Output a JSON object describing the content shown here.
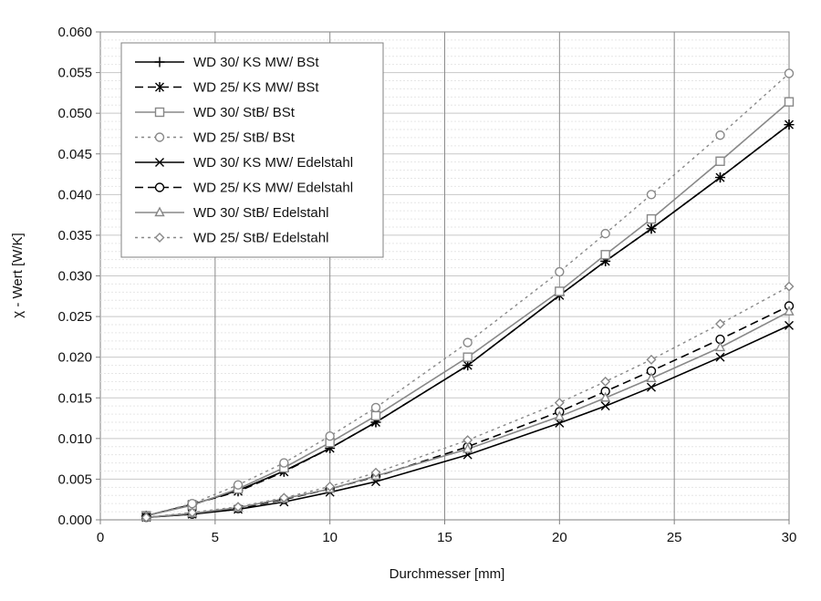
{
  "chart_data": {
    "type": "line",
    "title": "",
    "xlabel": "Durchmesser [mm]",
    "ylabel": "χ - Wert [W/K]",
    "xlim": [
      0,
      30
    ],
    "ylim": [
      0,
      0.06
    ],
    "x_ticks": [
      0,
      5,
      10,
      15,
      20,
      25,
      30
    ],
    "y_ticks": [
      0.0,
      0.005,
      0.01,
      0.015,
      0.02,
      0.025,
      0.03,
      0.035,
      0.04,
      0.045,
      0.05,
      0.055,
      0.06
    ],
    "x_tick_labels": [
      "0",
      "5",
      "10",
      "15",
      "20",
      "25",
      "30"
    ],
    "y_tick_labels": [
      "0.000",
      "0.005",
      "0.010",
      "0.015",
      "0.020",
      "0.025",
      "0.030",
      "0.035",
      "0.040",
      "0.045",
      "0.050",
      "0.055",
      "0.060"
    ],
    "grid": {
      "major_x": true,
      "minor_y": true
    },
    "legend_position": "top-left",
    "x": [
      2,
      4,
      6,
      8,
      10,
      12,
      16,
      20,
      22,
      24,
      27,
      30
    ],
    "series": [
      {
        "name": "WD 30/ KS MW/ BSt",
        "color": "#000000",
        "dash": "solid",
        "marker": "plus",
        "values": [
          0.0005,
          0.0019,
          0.0036,
          0.006,
          0.0088,
          0.012,
          0.019,
          0.0276,
          0.0318,
          0.0358,
          0.0421,
          0.0486
        ]
      },
      {
        "name": "WD 25/ KS MW/ BSt",
        "color": "#000000",
        "dash": "dashed",
        "marker": "asterisk",
        "values": [
          0.0005,
          0.0019,
          0.0035,
          0.0059,
          0.0088,
          0.012,
          0.019,
          0.0276,
          0.0318,
          0.0358,
          0.0421,
          0.0486
        ]
      },
      {
        "name": "WD 30/ StB/ BSt",
        "color": "#888888",
        "dash": "solid",
        "marker": "square",
        "values": [
          0.0005,
          0.0018,
          0.0038,
          0.0064,
          0.0095,
          0.0128,
          0.02,
          0.0281,
          0.0326,
          0.037,
          0.0441,
          0.0514
        ]
      },
      {
        "name": "WD 25/ StB/ BSt",
        "color": "#888888",
        "dash": "dotted",
        "marker": "circle",
        "values": [
          0.0005,
          0.002,
          0.0043,
          0.007,
          0.0103,
          0.0138,
          0.0218,
          0.0305,
          0.0352,
          0.04,
          0.0473,
          0.0549
        ]
      },
      {
        "name": "WD 30/ KS MW/ Edelstahl",
        "color": "#000000",
        "dash": "solid",
        "marker": "x",
        "values": [
          0.0003,
          0.0007,
          0.0013,
          0.0022,
          0.0034,
          0.0047,
          0.008,
          0.0119,
          0.014,
          0.0163,
          0.02,
          0.0239
        ]
      },
      {
        "name": "WD 25/ KS MW/ Edelstahl",
        "color": "#000000",
        "dash": "dashed",
        "marker": "circle",
        "values": [
          0.0003,
          0.0007,
          0.0014,
          0.0025,
          0.0038,
          0.0053,
          0.009,
          0.0133,
          0.0158,
          0.0183,
          0.0222,
          0.0263
        ]
      },
      {
        "name": "WD 30/ StB/ Edelstahl",
        "color": "#888888",
        "dash": "solid",
        "marker": "triangle",
        "values": [
          0.0003,
          0.0008,
          0.0015,
          0.0026,
          0.0038,
          0.0054,
          0.0087,
          0.0127,
          0.015,
          0.0174,
          0.0212,
          0.0256
        ]
      },
      {
        "name": "WD 25/ StB/ Edelstahl",
        "color": "#888888",
        "dash": "dotted",
        "marker": "diamond",
        "values": [
          0.0003,
          0.0009,
          0.0016,
          0.0027,
          0.0041,
          0.0058,
          0.0098,
          0.0144,
          0.017,
          0.0197,
          0.0241,
          0.0287
        ]
      }
    ]
  }
}
